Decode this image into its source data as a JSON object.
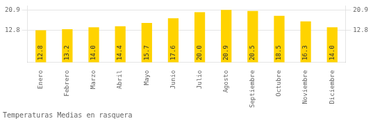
{
  "chart_data": {
    "type": "bar",
    "title": "Temperaturas Medias en rasquera",
    "categories": [
      "Enero",
      "Febrero",
      "Marzo",
      "Abril",
      "Mayo",
      "Junio",
      "Julio",
      "Agosto",
      "Septiembre",
      "Octubre",
      "Noviembre",
      "Diciembre"
    ],
    "values": [
      12.8,
      13.2,
      14.0,
      14.4,
      15.7,
      17.6,
      20.0,
      20.9,
      20.5,
      18.5,
      16.3,
      14.0
    ],
    "value_labels": [
      "12.8",
      "13.2",
      "14.0",
      "14.4",
      "15.7",
      "17.6",
      "20.0",
      "20.9",
      "20.5",
      "18.5",
      "16.3",
      "14.0"
    ],
    "color": "#FFD300",
    "ylim": [
      0,
      22.5
    ],
    "yticks": [
      12.8,
      20.9
    ],
    "y2lim": [
      0,
      22.5
    ],
    "y2ticks": [
      12.8,
      20.9
    ],
    "grid": true,
    "data_labels": true
  }
}
